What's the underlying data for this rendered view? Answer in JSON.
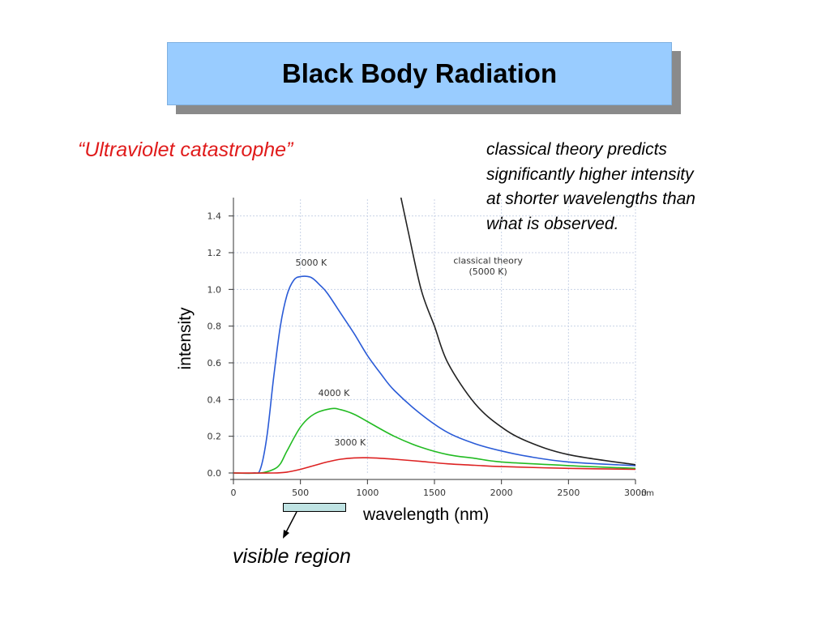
{
  "slide": {
    "title": "Black Body Radiation",
    "subtitle": "“Ultraviolet catastrophe”",
    "note_lines": [
      "classical theory predicts",
      "significantly higher intensity",
      "at shorter wavelengths than",
      "what is observed."
    ],
    "visible_region_label": "visible region"
  },
  "colors": {
    "title_bg": "#99ccff",
    "subtitle": "#e01b1b",
    "curve_5000": "#2a5bd7",
    "curve_4000": "#22bb22",
    "curve_3000": "#dd2222",
    "curve_classical": "#222222",
    "grid": "#c8d2e6",
    "visible_bar": "#bfe3e3"
  },
  "chart_data": {
    "type": "line",
    "title": "",
    "xlabel": "wavelength (nm)",
    "ylabel": "intensity",
    "x_unit_label": "nm",
    "xlim": [
      0,
      3000
    ],
    "ylim": [
      0,
      1.5
    ],
    "xticks": [
      0,
      500,
      1000,
      1500,
      2000,
      2500,
      3000
    ],
    "xtick_labels": [
      "0",
      "500",
      "1000",
      "1500",
      "2000",
      "2500",
      "3000"
    ],
    "yticks": [
      0.0,
      0.2,
      0.4,
      0.6,
      0.8,
      1.0,
      1.2,
      1.4
    ],
    "ytick_labels": [
      "0.0",
      "0.2",
      "0.4",
      "0.6",
      "0.8",
      "1.0",
      "1.2",
      "1.4"
    ],
    "grid": true,
    "visible_region": [
      380,
      780
    ],
    "series": [
      {
        "name": "5000 K",
        "color": "#2a5bd7",
        "points": [
          [
            0,
            0
          ],
          [
            150,
            0
          ],
          [
            200,
            0.02
          ],
          [
            250,
            0.2
          ],
          [
            300,
            0.52
          ],
          [
            350,
            0.8
          ],
          [
            400,
            0.97
          ],
          [
            450,
            1.05
          ],
          [
            500,
            1.07
          ],
          [
            580,
            1.065
          ],
          [
            650,
            1.02
          ],
          [
            700,
            0.98
          ],
          [
            800,
            0.87
          ],
          [
            900,
            0.76
          ],
          [
            1000,
            0.64
          ],
          [
            1100,
            0.54
          ],
          [
            1200,
            0.45
          ],
          [
            1400,
            0.32
          ],
          [
            1600,
            0.22
          ],
          [
            1800,
            0.16
          ],
          [
            2000,
            0.12
          ],
          [
            2200,
            0.09
          ],
          [
            2500,
            0.06
          ],
          [
            3000,
            0.04
          ]
        ]
      },
      {
        "name": "4000 K",
        "color": "#22bb22",
        "points": [
          [
            0,
            0
          ],
          [
            200,
            0
          ],
          [
            300,
            0.02
          ],
          [
            350,
            0.05
          ],
          [
            400,
            0.12
          ],
          [
            500,
            0.25
          ],
          [
            600,
            0.32
          ],
          [
            725,
            0.35
          ],
          [
            800,
            0.345
          ],
          [
            900,
            0.32
          ],
          [
            1000,
            0.28
          ],
          [
            1200,
            0.2
          ],
          [
            1400,
            0.14
          ],
          [
            1600,
            0.1
          ],
          [
            1800,
            0.08
          ],
          [
            2000,
            0.06
          ],
          [
            2500,
            0.04
          ],
          [
            3000,
            0.025
          ]
        ]
      },
      {
        "name": "3000 K",
        "color": "#dd2222",
        "points": [
          [
            0,
            0
          ],
          [
            300,
            0
          ],
          [
            400,
            0.005
          ],
          [
            500,
            0.02
          ],
          [
            600,
            0.04
          ],
          [
            700,
            0.06
          ],
          [
            800,
            0.075
          ],
          [
            900,
            0.082
          ],
          [
            1000,
            0.083
          ],
          [
            1100,
            0.08
          ],
          [
            1200,
            0.075
          ],
          [
            1400,
            0.063
          ],
          [
            1600,
            0.05
          ],
          [
            1800,
            0.042
          ],
          [
            2000,
            0.035
          ],
          [
            2500,
            0.025
          ],
          [
            3000,
            0.02
          ]
        ]
      },
      {
        "name": "classical theory (5000 K)",
        "color": "#222222",
        "points": [
          [
            1250,
            1.5
          ],
          [
            1300,
            1.33
          ],
          [
            1400,
            1.0
          ],
          [
            1500,
            0.8
          ],
          [
            1600,
            0.6
          ],
          [
            1800,
            0.38
          ],
          [
            2000,
            0.25
          ],
          [
            2200,
            0.17
          ],
          [
            2500,
            0.1
          ],
          [
            3000,
            0.045
          ]
        ]
      }
    ],
    "annotations": [
      {
        "text": "5000 K",
        "x": 580,
        "y": 1.13
      },
      {
        "text": "classical theory",
        "x": 1900,
        "y": 1.14
      },
      {
        "text": "(5000 K)",
        "x": 1900,
        "y": 1.08
      },
      {
        "text": "4000 K",
        "x": 750,
        "y": 0.42
      },
      {
        "text": "3000 K",
        "x": 870,
        "y": 0.15
      }
    ]
  }
}
